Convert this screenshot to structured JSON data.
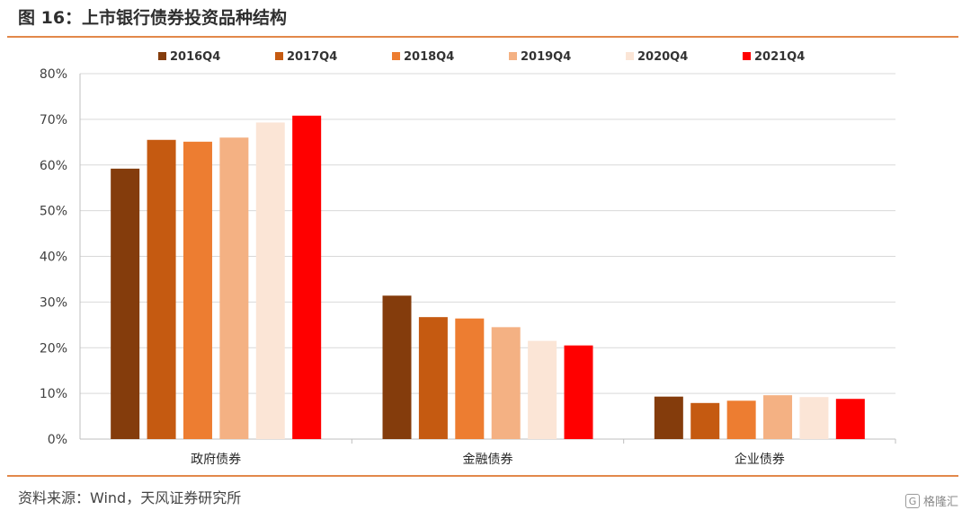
{
  "figure_title": "图 16：上市银行债券投资品种结构",
  "source_note": "资料来源：Wind，天风证券研究所",
  "watermark": {
    "text": "格隆汇",
    "icon": "G"
  },
  "colors": [
    "#843C0C",
    "#C55A11",
    "#ED7D31",
    "#F4B183",
    "#FBE5D6",
    "#FF0000"
  ],
  "chart_data": {
    "type": "bar",
    "title": "",
    "xlabel": "",
    "ylabel": "",
    "categories": [
      "政府债券",
      "金融债券",
      "企业债券"
    ],
    "series": [
      {
        "name": "2016Q4",
        "values": [
          59.2,
          31.4,
          9.3
        ]
      },
      {
        "name": "2017Q4",
        "values": [
          65.5,
          26.7,
          7.9
        ]
      },
      {
        "name": "2018Q4",
        "values": [
          65.1,
          26.4,
          8.4
        ]
      },
      {
        "name": "2019Q4",
        "values": [
          66.0,
          24.5,
          9.6
        ]
      },
      {
        "name": "2020Q4",
        "values": [
          69.3,
          21.5,
          9.2
        ]
      },
      {
        "name": "2021Q4",
        "values": [
          70.8,
          20.5,
          8.8
        ]
      }
    ],
    "ylim": [
      0,
      80
    ],
    "yticks": [
      0,
      10,
      20,
      30,
      40,
      50,
      60,
      70,
      80
    ],
    "ytick_labels": [
      "0%",
      "10%",
      "20%",
      "30%",
      "40%",
      "50%",
      "60%",
      "70%",
      "80%"
    ],
    "grid": true,
    "legend_position": "top"
  }
}
